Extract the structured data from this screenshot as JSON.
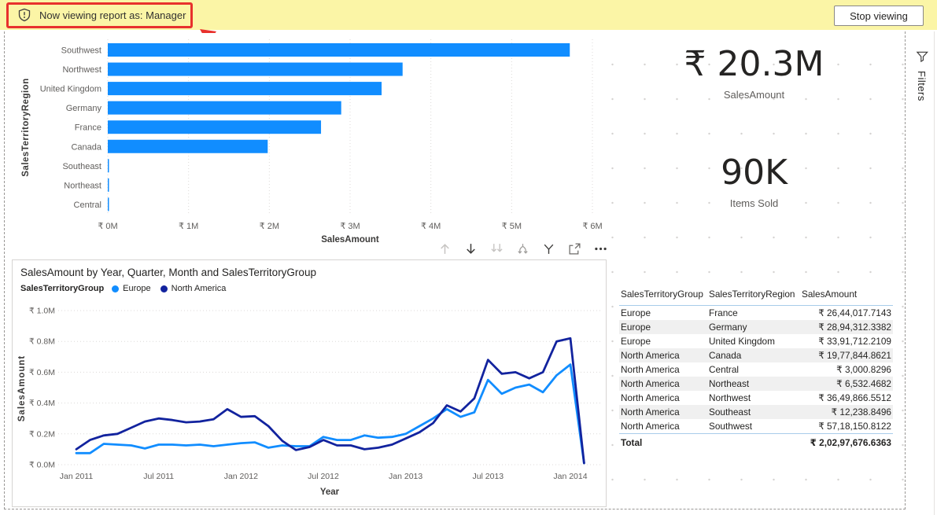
{
  "banner": {
    "icon": "shield-alert-icon",
    "message": "Now viewing report as: Manager",
    "stop_button_label": "Stop viewing",
    "bg_color": "#FBF5A6",
    "annotation_color": "#E8312D"
  },
  "filters_pane": {
    "icon": "filter-funnel-icon",
    "label": "Filters"
  },
  "cards": {
    "sales_amount": {
      "value": "₹ 20.3M",
      "label": "SalesAmount"
    },
    "items_sold": {
      "value": "90K",
      "label": "Items Sold"
    }
  },
  "visual_toolbar": {
    "icons": [
      "drill-up",
      "drill-down",
      "go-to-next-level",
      "expand-all-down",
      "filters",
      "focus-mode",
      "more-options"
    ]
  },
  "chart_data": [
    {
      "type": "bar",
      "orientation": "horizontal",
      "categories": [
        "Southwest",
        "Northwest",
        "United Kingdom",
        "Germany",
        "France",
        "Canada",
        "Southeast",
        "Northeast",
        "Central"
      ],
      "values": [
        5.72,
        3.65,
        3.39,
        2.89,
        2.64,
        1.98,
        0.012,
        0.007,
        0.003
      ],
      "xlabel": "SalesAmount",
      "ylabel": "SalesTerritoryRegion",
      "xlim": [
        0,
        6
      ],
      "x_ticks": [
        "₹ 0M",
        "₹ 1M",
        "₹ 2M",
        "₹ 3M",
        "₹ 4M",
        "₹ 5M",
        "₹ 6M"
      ],
      "bar_color": "#118DFF",
      "grid": true
    },
    {
      "type": "line",
      "title": "SalesAmount by Year, Quarter, Month and SalesTerritoryGroup",
      "legend_title": "SalesTerritoryGroup",
      "legend_position": "top",
      "xlabel": "Year",
      "ylabel": "SalesAmount",
      "ylim": [
        0,
        1.0
      ],
      "y_ticks": [
        "₹ 0.0M",
        "₹ 0.2M",
        "₹ 0.4M",
        "₹ 0.6M",
        "₹ 0.8M",
        "₹ 1.0M"
      ],
      "x_ticks": [
        "Jan 2011",
        "Jul 2011",
        "Jan 2012",
        "Jul 2012",
        "Jan 2013",
        "Jul 2013",
        "Jan 2014"
      ],
      "x_start": "Jan 2011",
      "x_tick_interval_months": 6,
      "grid": true,
      "series": [
        {
          "name": "Europe",
          "color": "#118DFF",
          "values": [
            0.075,
            0.075,
            0.135,
            0.13,
            0.125,
            0.105,
            0.13,
            0.13,
            0.125,
            0.13,
            0.12,
            0.13,
            0.14,
            0.145,
            0.11,
            0.125,
            0.12,
            0.12,
            0.18,
            0.16,
            0.16,
            0.19,
            0.175,
            0.18,
            0.2,
            0.25,
            0.3,
            0.36,
            0.31,
            0.34,
            0.55,
            0.46,
            0.5,
            0.52,
            0.47,
            0.58,
            0.65,
            0.01
          ]
        },
        {
          "name": "North America",
          "color": "#12239E",
          "values": [
            0.1,
            0.16,
            0.19,
            0.2,
            0.24,
            0.28,
            0.3,
            0.29,
            0.275,
            0.28,
            0.295,
            0.36,
            0.31,
            0.315,
            0.25,
            0.155,
            0.095,
            0.115,
            0.16,
            0.125,
            0.125,
            0.1,
            0.11,
            0.13,
            0.17,
            0.21,
            0.27,
            0.385,
            0.345,
            0.43,
            0.68,
            0.59,
            0.6,
            0.56,
            0.6,
            0.8,
            0.82,
            0.01
          ]
        }
      ]
    }
  ],
  "table": {
    "headers": [
      "SalesTerritoryGroup",
      "SalesTerritoryRegion",
      "SalesAmount"
    ],
    "rows": [
      [
        "Europe",
        "France",
        "₹ 26,44,017.7143"
      ],
      [
        "Europe",
        "Germany",
        "₹ 28,94,312.3382"
      ],
      [
        "Europe",
        "United Kingdom",
        "₹ 33,91,712.2109"
      ],
      [
        "North America",
        "Canada",
        "₹ 19,77,844.8621"
      ],
      [
        "North America",
        "Central",
        "₹ 3,000.8296"
      ],
      [
        "North America",
        "Northeast",
        "₹ 6,532.4682"
      ],
      [
        "North America",
        "Northwest",
        "₹ 36,49,866.5512"
      ],
      [
        "North America",
        "Southeast",
        "₹ 12,238.8496"
      ],
      [
        "North America",
        "Southwest",
        "₹ 57,18,150.8122"
      ]
    ],
    "total_label": "Total",
    "total_value": "₹ 2,02,97,676.6363"
  }
}
